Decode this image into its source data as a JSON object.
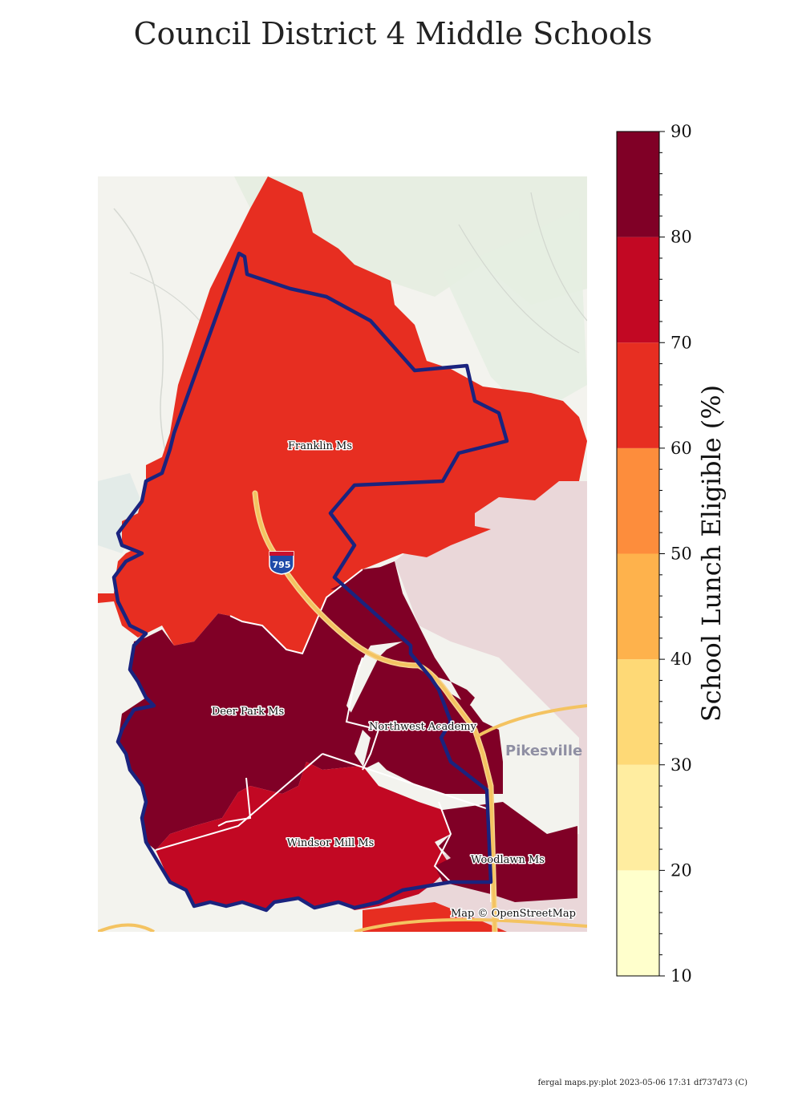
{
  "title": "Council District 4 Middle Schools",
  "colorbar": {
    "label": "School Lunch Eligible (%)",
    "min": 10,
    "max": 90,
    "ticks": [
      10,
      20,
      30,
      40,
      50,
      60,
      70,
      80,
      90
    ],
    "bins": [
      {
        "from": 10,
        "to": 20,
        "color": "#ffffcc"
      },
      {
        "from": 20,
        "to": 30,
        "color": "#ffeda0"
      },
      {
        "from": 30,
        "to": 40,
        "color": "#fed976"
      },
      {
        "from": 40,
        "to": 50,
        "color": "#feb24c"
      },
      {
        "from": 50,
        "to": 60,
        "color": "#fd8d3c"
      },
      {
        "from": 60,
        "to": 70,
        "color": "#e72e21"
      },
      {
        "from": 70,
        "to": 80,
        "color": "#c20823"
      },
      {
        "from": 80,
        "to": 90,
        "color": "#800026"
      }
    ]
  },
  "schools": [
    {
      "name": "Franklin Ms",
      "color": "#e72e21"
    },
    {
      "name": "Deer Park Ms",
      "color": "#800026"
    },
    {
      "name": "Northwest Academy",
      "color": "#800026"
    },
    {
      "name": "Windsor Mill Ms",
      "color": "#c20823"
    },
    {
      "name": "Woodlawn Ms",
      "color": "#800026"
    }
  ],
  "map": {
    "highway_shield": "795",
    "place_label": "Pikesville",
    "attribution": "Map © OpenStreetMap",
    "district_outline_color": "#1a237e",
    "highway_color": "#f4c361"
  },
  "footer": "fergal maps.py:plot 2023-05-06 17:31 df737d73 (C)"
}
